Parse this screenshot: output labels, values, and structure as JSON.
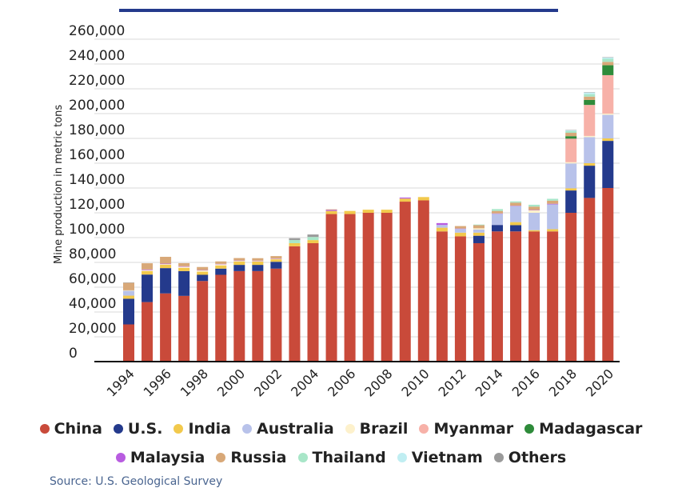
{
  "chart_data": {
    "type": "bar",
    "stacked": true,
    "ylabel": "Mine production in metric tons",
    "xlabel": "",
    "ylim": [
      0,
      260000
    ],
    "yticks": [
      0,
      20000,
      40000,
      60000,
      80000,
      100000,
      120000,
      140000,
      160000,
      180000,
      200000,
      220000,
      240000,
      260000
    ],
    "ytick_labels": [
      "0",
      "20,000",
      "40,000",
      "60,000",
      "80,000",
      "100,000",
      "120,000",
      "140,000",
      "160,000",
      "180,000",
      "200,000",
      "220,000",
      "240,000",
      "260,000"
    ],
    "categories": [
      "1994",
      "1995",
      "1996",
      "1997",
      "1998",
      "1999",
      "2000",
      "2001",
      "2002",
      "2003",
      "2004",
      "2005",
      "2006",
      "2007",
      "2008",
      "2009",
      "2010",
      "2011",
      "2012",
      "2013",
      "2014",
      "2015",
      "2016",
      "2017",
      "2018",
      "2019",
      "2020"
    ],
    "xtick_labels": [
      "1994",
      "1996",
      "1998",
      "2000",
      "2002",
      "2004",
      "2006",
      "2008",
      "2010",
      "2012",
      "2014",
      "2016",
      "2018",
      "2020"
    ],
    "grid": true,
    "legend_position": "bottom",
    "series": [
      {
        "name": "China",
        "color": "#c94a3a",
        "values": [
          30000,
          48000,
          55000,
          53000,
          65000,
          70000,
          73000,
          73000,
          75000,
          93000,
          95500,
          119000,
          119000,
          120000,
          120000,
          129000,
          130000,
          105000,
          101000,
          95500,
          105000,
          105000,
          105000,
          105000,
          120000,
          132000,
          140000
        ]
      },
      {
        "name": "U.S.",
        "color": "#243a8c",
        "values": [
          20700,
          22200,
          20400,
          20000,
          5000,
          5000,
          5000,
          5000,
          5500,
          0,
          0,
          0,
          0,
          0,
          0,
          0,
          0,
          0,
          0,
          6000,
          5200,
          5000,
          0,
          0,
          18000,
          26000,
          38000
        ]
      },
      {
        "name": "India",
        "color": "#f2c94c",
        "values": [
          2500,
          2800,
          2700,
          2500,
          2500,
          2500,
          2700,
          2700,
          2000,
          2500,
          2500,
          2500,
          2500,
          2500,
          2500,
          2500,
          2700,
          3000,
          3000,
          2500,
          0,
          2500,
          1000,
          1800,
          1800,
          2000,
          2000
        ]
      },
      {
        "name": "Australia",
        "color": "#b8c2ea",
        "values": [
          3900,
          0,
          0,
          0,
          0,
          0,
          0,
          0,
          0,
          0,
          0,
          0,
          0,
          0,
          0,
          0,
          0,
          2200,
          3000,
          2500,
          9000,
          12900,
          14000,
          20000,
          20000,
          21000,
          19000
        ]
      },
      {
        "name": "Brazil",
        "color": "#fdf1cc",
        "values": [
          400,
          800,
          500,
          1000,
          1000,
          1000,
          500,
          400,
          300,
          0,
          0,
          0,
          0,
          0,
          0,
          0,
          0,
          0,
          0,
          1000,
          0,
          0,
          2000,
          0,
          1000,
          1000,
          1000
        ]
      },
      {
        "name": "Myanmar",
        "color": "#f7b1a8",
        "values": [
          0,
          0,
          0,
          0,
          0,
          0,
          0,
          0,
          0,
          0,
          0,
          0,
          0,
          0,
          0,
          0,
          0,
          0,
          0,
          0,
          0,
          0,
          0,
          0,
          19000,
          25000,
          31000
        ]
      },
      {
        "name": "Madagascar",
        "color": "#2e8b3a",
        "values": [
          0,
          0,
          0,
          0,
          0,
          0,
          0,
          0,
          0,
          0,
          0,
          0,
          0,
          0,
          0,
          0,
          0,
          0,
          0,
          0,
          0,
          0,
          0,
          0,
          2000,
          4000,
          8000
        ]
      },
      {
        "name": "Malaysia",
        "color": "#b85ce0",
        "values": [
          0,
          500,
          400,
          400,
          300,
          300,
          300,
          300,
          300,
          0,
          0,
          800,
          0,
          0,
          0,
          800,
          0,
          1500,
          300,
          0,
          300,
          300,
          300,
          500,
          0,
          0,
          0
        ]
      },
      {
        "name": "Russia",
        "color": "#d8a878",
        "values": [
          6000,
          5000,
          5500,
          2500,
          2500,
          2000,
          2000,
          2000,
          2000,
          0,
          0,
          500,
          0,
          0,
          0,
          0,
          0,
          0,
          2000,
          2500,
          2000,
          2500,
          2700,
          2500,
          2700,
          2700,
          2700
        ]
      },
      {
        "name": "Thailand",
        "color": "#a8e6c8",
        "values": [
          0,
          0,
          0,
          0,
          0,
          0,
          0,
          0,
          0,
          2500,
          2500,
          0,
          0,
          0,
          0,
          0,
          0,
          0,
          0,
          500,
          1500,
          1000,
          1500,
          1500,
          1500,
          2000,
          2500
        ]
      },
      {
        "name": "Vietnam",
        "color": "#c0eef2",
        "values": [
          0,
          0,
          0,
          0,
          0,
          0,
          0,
          0,
          0,
          0,
          0,
          0,
          0,
          0,
          0,
          0,
          0,
          0,
          0,
          0,
          0,
          0,
          0,
          0,
          500,
          1300,
          1000
        ]
      },
      {
        "name": "Others",
        "color": "#9a9a9a",
        "values": [
          300,
          0,
          0,
          0,
          0,
          0,
          0,
          0,
          0,
          1500,
          2000,
          0,
          0,
          0,
          0,
          0,
          0,
          0,
          0,
          0,
          0,
          0,
          0,
          0,
          300,
          300,
          300
        ]
      }
    ]
  },
  "legend": [
    "China",
    "U.S.",
    "India",
    "Australia",
    "Brazil",
    "Myanmar",
    "Madagascar",
    "Malaysia",
    "Russia",
    "Thailand",
    "Vietnam",
    "Others"
  ],
  "source": "Source: U.S. Geological Survey"
}
